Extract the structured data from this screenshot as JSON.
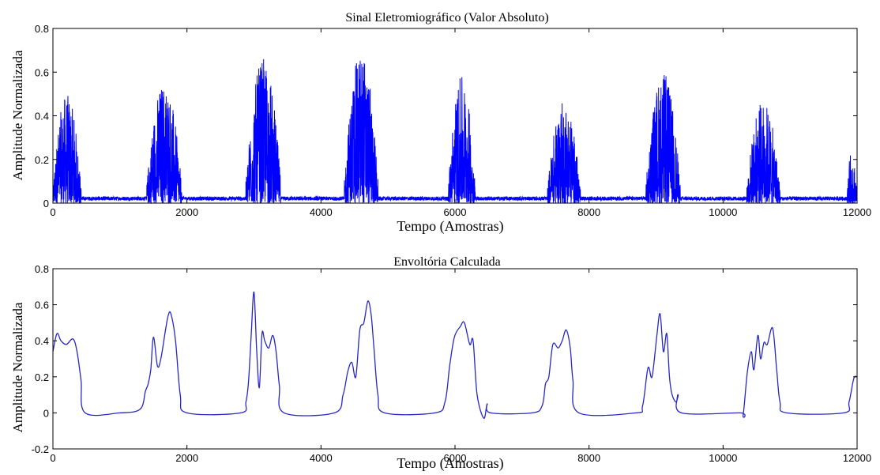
{
  "colors": {
    "signal": "#0000ff",
    "envelope": "#2727c8",
    "axes": "#000000",
    "background": "#ffffff"
  },
  "chart_data": [
    {
      "type": "line",
      "title": "Sinal Eletromiográfico (Valor Absoluto)",
      "xlabel": "Tempo (Amostras)",
      "ylabel": "Amplitude Normalizada",
      "xlim": [
        0,
        12000
      ],
      "ylim": [
        0,
        0.8
      ],
      "xticks": [
        "0",
        "2000",
        "4000",
        "6000",
        "8000",
        "10000",
        "12000"
      ],
      "yticks": [
        "0",
        "0.2",
        "0.4",
        "0.6",
        "0.8"
      ],
      "grid": false,
      "bursts": [
        {
          "start": 0,
          "end": 420,
          "peak": 0.5
        },
        {
          "start": 1400,
          "end": 1920,
          "peak": 0.56
        },
        {
          "start": 2880,
          "end": 3400,
          "peak": 0.66
        },
        {
          "start": 4350,
          "end": 4850,
          "peak": 0.7
        },
        {
          "start": 5900,
          "end": 6300,
          "peak": 0.58
        },
        {
          "start": 7380,
          "end": 7870,
          "peak": 0.47
        },
        {
          "start": 8850,
          "end": 9360,
          "peak": 0.6
        },
        {
          "start": 10350,
          "end": 10850,
          "peak": 0.47
        },
        {
          "start": 11850,
          "end": 12000,
          "peak": 0.25
        }
      ],
      "baseline_noise": 0.03
    },
    {
      "type": "line",
      "title": "Envoltória Calculada",
      "xlabel": "Tempo (Amostras)",
      "ylabel": "Amplitude Normalizada",
      "xlim": [
        0,
        12000
      ],
      "ylim": [
        -0.2,
        0.8
      ],
      "xticks": [
        "0",
        "2000",
        "4000",
        "6000",
        "8000",
        "10000",
        "12000"
      ],
      "yticks": [
        "-0.2",
        "0",
        "0.2",
        "0.4",
        "0.6",
        "0.8"
      ],
      "grid": false,
      "x": [
        0,
        60,
        120,
        200,
        300,
        360,
        420,
        480,
        1000,
        1300,
        1380,
        1420,
        1460,
        1500,
        1560,
        1610,
        1680,
        1720,
        1760,
        1830,
        1900,
        2000,
        2800,
        2880,
        2920,
        2960,
        3000,
        3040,
        3080,
        3120,
        3160,
        3220,
        3280,
        3330,
        3380,
        3450,
        4200,
        4330,
        4400,
        4460,
        4520,
        4580,
        4640,
        4700,
        4750,
        4790,
        4850,
        4950,
        5700,
        5850,
        5920,
        5990,
        6080,
        6140,
        6220,
        6270,
        6330,
        6430,
        6480,
        6530,
        7150,
        7300,
        7350,
        7400,
        7460,
        7540,
        7600,
        7660,
        7720,
        7760,
        7850,
        8700,
        8800,
        8880,
        8940,
        9010,
        9060,
        9110,
        9160,
        9200,
        9240,
        9300,
        9330,
        9380,
        10250,
        10300,
        10360,
        10420,
        10460,
        10520,
        10560,
        10610,
        10660,
        10740,
        10800,
        10850,
        10950,
        11800,
        11880,
        11950,
        12000
      ],
      "y": [
        0.34,
        0.44,
        0.4,
        0.38,
        0.41,
        0.34,
        0.18,
        0.0,
        0.0,
        0.02,
        0.12,
        0.16,
        0.24,
        0.42,
        0.26,
        0.3,
        0.46,
        0.54,
        0.55,
        0.4,
        0.1,
        0.0,
        0.0,
        0.06,
        0.18,
        0.44,
        0.67,
        0.35,
        0.14,
        0.44,
        0.4,
        0.36,
        0.43,
        0.34,
        0.15,
        0.0,
        0.0,
        0.1,
        0.23,
        0.28,
        0.2,
        0.46,
        0.5,
        0.62,
        0.54,
        0.36,
        0.1,
        0.0,
        0.0,
        0.06,
        0.26,
        0.42,
        0.48,
        0.5,
        0.38,
        0.4,
        0.1,
        -0.03,
        0.05,
        0.0,
        0.0,
        0.04,
        0.16,
        0.2,
        0.38,
        0.36,
        0.4,
        0.46,
        0.36,
        0.18,
        0.0,
        0.0,
        0.04,
        0.25,
        0.2,
        0.42,
        0.55,
        0.34,
        0.44,
        0.2,
        0.1,
        0.06,
        0.1,
        0.0,
        0.0,
        -0.01,
        0.22,
        0.34,
        0.24,
        0.43,
        0.3,
        0.39,
        0.38,
        0.47,
        0.24,
        0.06,
        0.0,
        0.0,
        0.06,
        0.19,
        0.2
      ]
    }
  ]
}
